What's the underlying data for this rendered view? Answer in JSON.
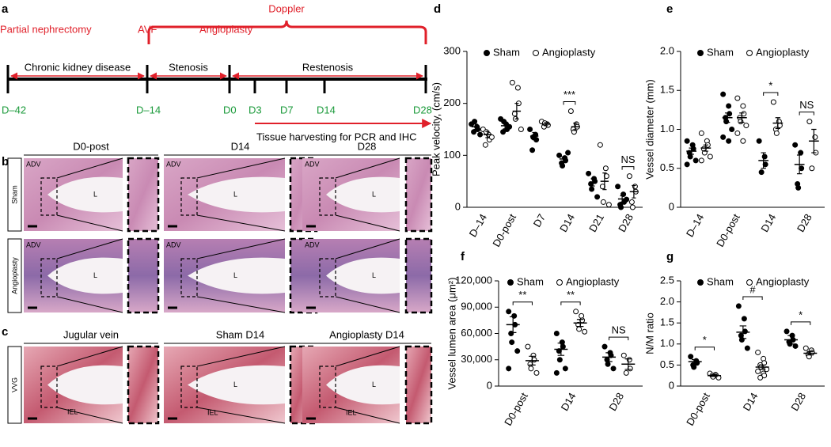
{
  "panel_labels": [
    "a",
    "b",
    "c",
    "d",
    "e",
    "f",
    "g"
  ],
  "timeline": {
    "doppler": "Doppler",
    "events": [
      "Partial nephrectomy",
      "AVF",
      "Angioplasty"
    ],
    "phases": [
      "Chronic kidney disease",
      "Stenosis",
      "Restenosis"
    ],
    "days": [
      "D–42",
      "D–14",
      "D0",
      "D3",
      "D7",
      "D14",
      "D28"
    ],
    "harvest": "Tissue harvesting for PCR and IHC"
  },
  "histology": {
    "b_columns": [
      "D0-post",
      "D14",
      "D28"
    ],
    "b_rows": [
      "Sham",
      "Angioplasty"
    ],
    "c_columns": [
      "Jugular vein",
      "Sham D14",
      "Angioplasty D14"
    ],
    "c_row": "VVG",
    "labels": {
      "adv": "ADV",
      "lumen": "L",
      "iel": "IEL"
    }
  },
  "chart_data": [
    {
      "type": "dot",
      "ylabel": "Peak velocity, (cm/s)",
      "categories": [
        "D–14",
        "D0-post",
        "D7",
        "D14",
        "D21",
        "D28"
      ],
      "ylim": [
        0,
        300
      ],
      "yticks": [
        0,
        100,
        200,
        300
      ],
      "significance": [
        null,
        null,
        null,
        "***",
        null,
        "NS"
      ],
      "series": [
        {
          "name": "Sham",
          "color": "#000000",
          "filled": true,
          "values": [
            [
              160,
              155,
              150,
              145,
              165,
              140
            ],
            [
              170,
              160,
              150,
              145,
              165,
              155
            ],
            [
              150,
              140,
              130,
              110,
              135
            ],
            [
              100,
              95,
              90,
              85,
              80,
              105
            ],
            [
              65,
              55,
              50,
              45,
              35,
              20
            ],
            [
              40,
              25,
              10,
              5,
              0,
              15
            ]
          ],
          "means": [
            155,
            157,
            137,
            93,
            48,
            16
          ],
          "errors": [
            5,
            6,
            7,
            4,
            7,
            6
          ]
        },
        {
          "name": "Angioplasty",
          "color": "#000000",
          "filled": false,
          "values": [
            [
              150,
              140,
              130,
              120,
              145,
              135
            ],
            [
              240,
              230,
              200,
              180,
              170,
              150
            ],
            [
              165,
              160,
              158,
              155,
              162
            ],
            [
              185,
              160,
              155,
              150,
              145
            ],
            [
              120,
              75,
              60,
              40,
              10,
              5
            ],
            [
              60,
              40,
              30,
              10,
              0
            ]
          ],
          "means": [
            140,
            185,
            160,
            155,
            50,
            30
          ],
          "errors": [
            6,
            15,
            3,
            7,
            16,
            12
          ]
        }
      ]
    },
    {
      "type": "dot",
      "ylabel": "Vessel diameter (mm)",
      "categories": [
        "D–14",
        "D0-post",
        "D14",
        "D28"
      ],
      "ylim": [
        0,
        2
      ],
      "yticks": [
        0,
        0.5,
        {
          "value": 1,
          "label": "1.0"
        },
        1.5,
        {
          "value": 2,
          "label": "2.0"
        }
      ],
      "significance": [
        null,
        null,
        "*",
        "NS"
      ],
      "series": [
        {
          "name": "Sham",
          "color": "#000000",
          "filled": true,
          "values": [
            [
              0.85,
              0.8,
              0.75,
              0.7,
              0.65,
              0.6,
              0.55
            ],
            [
              1.45,
              1.3,
              1.2,
              1.15,
              1.1,
              1.0,
              0.9,
              0.85
            ],
            [
              0.85,
              0.65,
              0.55,
              0.45
            ],
            [
              0.8,
              0.7,
              0.5,
              0.3,
              0.25
            ]
          ],
          "means": [
            0.72,
            1.15,
            0.6,
            0.55
          ],
          "errors": [
            0.04,
            0.06,
            0.1,
            0.12
          ]
        },
        {
          "name": "Angioplasty",
          "color": "#000000",
          "filled": false,
          "values": [
            [
              0.95,
              0.85,
              0.8,
              0.75,
              0.7,
              0.65,
              0.6
            ],
            [
              1.4,
              1.3,
              1.2,
              1.15,
              1.1,
              1.05,
              0.95,
              0.85
            ],
            [
              1.35,
              1.1,
              1.05,
              1.0,
              0.95
            ],
            [
              1.1,
              0.9,
              0.7,
              0.5
            ]
          ],
          "means": [
            0.76,
            1.15,
            1.08,
            0.85
          ],
          "errors": [
            0.04,
            0.06,
            0.07,
            0.15
          ]
        }
      ]
    },
    {
      "type": "dot",
      "ylabel": "Vessel lumen area (μm²)",
      "categories": [
        "D0-post",
        "D14",
        "D28"
      ],
      "ylim": [
        0,
        120000
      ],
      "yticks": [
        0,
        {
          "value": 30000,
          "label": "30,000"
        },
        {
          "value": 60000,
          "label": "60,000"
        },
        {
          "value": 90000,
          "label": "90,000"
        },
        {
          "value": 120000,
          "label": "120,000"
        }
      ],
      "significance": [
        "**",
        "**",
        "NS"
      ],
      "series": [
        {
          "name": "Sham",
          "color": "#000000",
          "filled": true,
          "values": [
            [
              85000,
              80000,
              70000,
              60000,
              50000,
              40000,
              20000
            ],
            [
              60000,
              50000,
              45000,
              40000,
              30000,
              20000,
              15000
            ],
            [
              45000,
              38000,
              35000,
              30000,
              25000,
              20000
            ]
          ],
          "means": [
            70000,
            42000,
            33000
          ],
          "errors": [
            9000,
            7000,
            5000
          ]
        },
        {
          "name": "Angioplasty",
          "color": "#000000",
          "filled": false,
          "values": [
            [
              45000,
              35000,
              30000,
              25000,
              20000,
              15000
            ],
            [
              85000,
              80000,
              75000,
              70000,
              65000,
              62000
            ],
            [
              35000,
              30000,
              20000,
              15000
            ]
          ],
          "means": [
            29000,
            72000,
            25000
          ],
          "errors": [
            5000,
            4000,
            6000
          ]
        }
      ]
    },
    {
      "type": "dot",
      "ylabel": "N/M ratio",
      "categories": [
        "D0-post",
        "D14",
        "D28"
      ],
      "ylim": [
        0,
        2.5
      ],
      "yticks": [
        0,
        0.5,
        {
          "value": 1,
          "label": "1.0"
        },
        1.5,
        {
          "value": 2,
          "label": "2.0"
        },
        2.5
      ],
      "significance": [
        "*",
        "#",
        "*"
      ],
      "series": [
        {
          "name": "Sham",
          "color": "#000000",
          "filled": true,
          "values": [
            [
              0.7,
              0.6,
              0.55,
              0.5,
              0.45
            ],
            [
              1.9,
              1.6,
              1.3,
              1.2,
              1.1,
              0.9
            ],
            [
              1.3,
              1.2,
              1.1,
              1.05,
              1.0,
              0.95
            ]
          ],
          "means": [
            0.58,
            1.28,
            1.1
          ],
          "errors": [
            0.05,
            0.15,
            0.1
          ]
        },
        {
          "name": "Angioplasty",
          "color": "#000000",
          "filled": false,
          "values": [
            [
              0.3,
              0.27,
              0.25,
              0.25,
              0.22,
              0.2
            ],
            [
              0.8,
              0.65,
              0.55,
              0.5,
              0.45,
              0.4,
              0.35,
              0.3,
              0.25,
              0.2
            ],
            [
              0.9,
              0.85,
              0.8,
              0.75,
              0.7
            ]
          ],
          "means": [
            0.25,
            0.45,
            0.78
          ],
          "errors": [
            0.02,
            0.05,
            0.04
          ]
        }
      ]
    }
  ]
}
